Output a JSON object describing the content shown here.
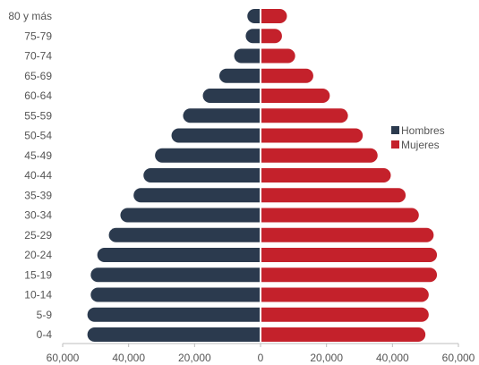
{
  "chart_data": {
    "type": "bar",
    "orientation": "horizontal",
    "categories": [
      "0-4",
      "5-9",
      "10-14",
      "15-19",
      "20-24",
      "25-29",
      "30-34",
      "35-39",
      "40-44",
      "45-49",
      "50-54",
      "55-59",
      "60-64",
      "65-69",
      "70-74",
      "75-79",
      "80 y más"
    ],
    "series": [
      {
        "name": "Hombres",
        "color": "#2b3a4e",
        "values": [
          52500,
          52500,
          51500,
          51500,
          49500,
          46000,
          42500,
          38500,
          35500,
          32000,
          27000,
          23500,
          17500,
          12500,
          8000,
          4500,
          4000
        ]
      },
      {
        "name": "Mujeres",
        "color": "#c4212b",
        "values": [
          50000,
          51000,
          51000,
          53500,
          53500,
          52500,
          48000,
          44000,
          39500,
          35500,
          31000,
          26500,
          21000,
          16000,
          10500,
          6500,
          8000
        ]
      }
    ],
    "x_ticks": [
      "60,000",
      "40,000",
      "20,000",
      "0",
      "20,000",
      "40,000",
      "60,000"
    ],
    "xlim": [
      -60000,
      60000
    ],
    "legend_position": "right"
  }
}
